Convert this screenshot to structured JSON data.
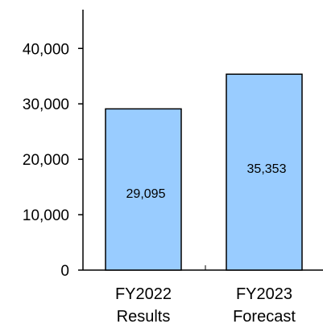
{
  "chart_data": {
    "type": "bar",
    "title": "",
    "xlabel": "",
    "ylabel": "",
    "categories": [
      [
        "FY2022",
        "Results"
      ],
      [
        "FY2023",
        "Forecast"
      ]
    ],
    "values": [
      29095,
      35353
    ],
    "value_labels": [
      "29,095",
      "35,353"
    ],
    "ylim": [
      0,
      47000
    ],
    "yticks": [
      0,
      10000,
      20000,
      30000,
      40000
    ],
    "ytick_labels": [
      "0",
      "10,000",
      "20,000",
      "30,000",
      "40,000"
    ],
    "grid": false,
    "legend": "none",
    "colors": {
      "bar_fill": "#99ccff",
      "bar_stroke": "#000000",
      "axis": "#000000"
    }
  }
}
